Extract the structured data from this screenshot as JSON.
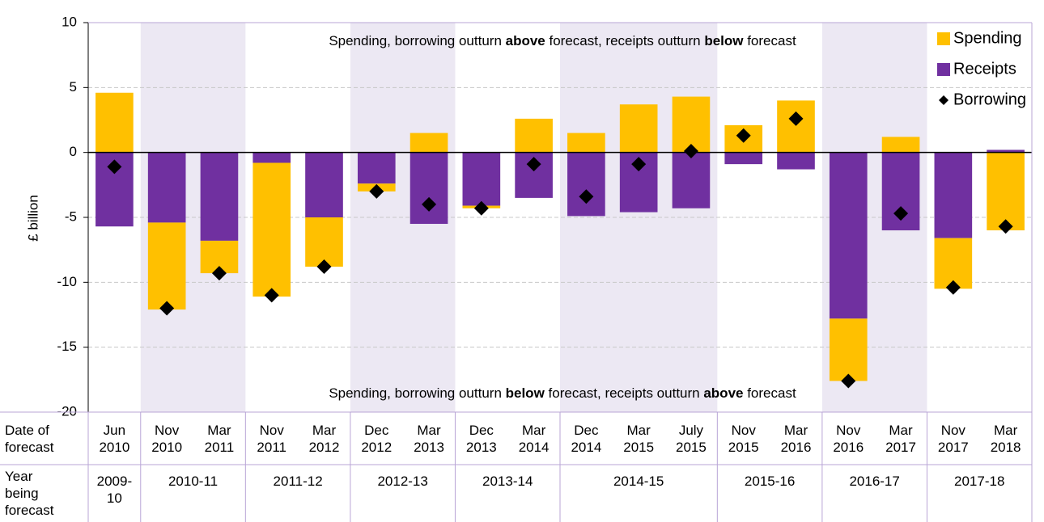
{
  "chart_data": {
    "type": "bar",
    "y_label": "£ billion",
    "annotation_top": [
      "Spending, borrowing outturn ",
      "above",
      " forecast, receipts outturn ",
      "below",
      " forecast"
    ],
    "annotation_bottom": [
      "Spending, borrowing outturn ",
      "below",
      " forecast, receipts outturn ",
      "above",
      " forecast"
    ],
    "row_label_dates": "Date of forecast",
    "row_label_years": "Year being forecast",
    "categories": [
      "Jun 2010",
      "Nov 2010",
      "Mar 2011",
      "Nov 2011",
      "Mar 2012",
      "Dec 2012",
      "Mar 2013",
      "Dec 2013",
      "Mar 2014",
      "Dec 2014",
      "Mar 2015",
      "July 2015",
      "Nov 2015",
      "Mar 2016",
      "Nov 2016",
      "Mar 2017",
      "Nov 2017",
      "Mar 2018"
    ],
    "years": [
      "2009-10",
      "2010-11",
      null,
      "2011-12",
      null,
      "2012-13",
      null,
      "2013-14",
      null,
      "2014-15",
      null,
      null,
      "2015-16",
      null,
      "2016-17",
      null,
      "2017-18",
      null
    ],
    "series": [
      {
        "name": "Spending",
        "type": "bar",
        "color": "#ffc000",
        "values": [
          4.6,
          -6.7,
          -2.5,
          -10.3,
          -3.8,
          -0.6,
          1.5,
          -0.2,
          2.6,
          1.5,
          3.7,
          4.3,
          2.1,
          4.0,
          -4.8,
          1.2,
          -3.9,
          -6.0
        ]
      },
      {
        "name": "Receipts",
        "type": "bar",
        "color": "#7030a0",
        "values": [
          -5.7,
          -5.4,
          -6.8,
          -0.8,
          -5.0,
          -2.4,
          -5.5,
          -4.1,
          -3.5,
          -4.9,
          -4.6,
          -4.3,
          -0.9,
          -1.3,
          -12.8,
          -6.0,
          -6.6,
          0.2
        ]
      },
      {
        "name": "Borrowing",
        "type": "scatter",
        "color": "#000000",
        "values": [
          -1.1,
          -12.0,
          -9.3,
          -11.0,
          -8.8,
          -3.0,
          -4.0,
          -4.3,
          -0.9,
          -3.4,
          -0.9,
          0.1,
          1.3,
          2.6,
          -17.6,
          -4.7,
          -10.4,
          -5.7
        ]
      }
    ],
    "ylim": [
      -20,
      10
    ],
    "yticks": [
      -20,
      -15,
      -10,
      -5,
      0,
      5,
      10
    ],
    "grid": true
  }
}
